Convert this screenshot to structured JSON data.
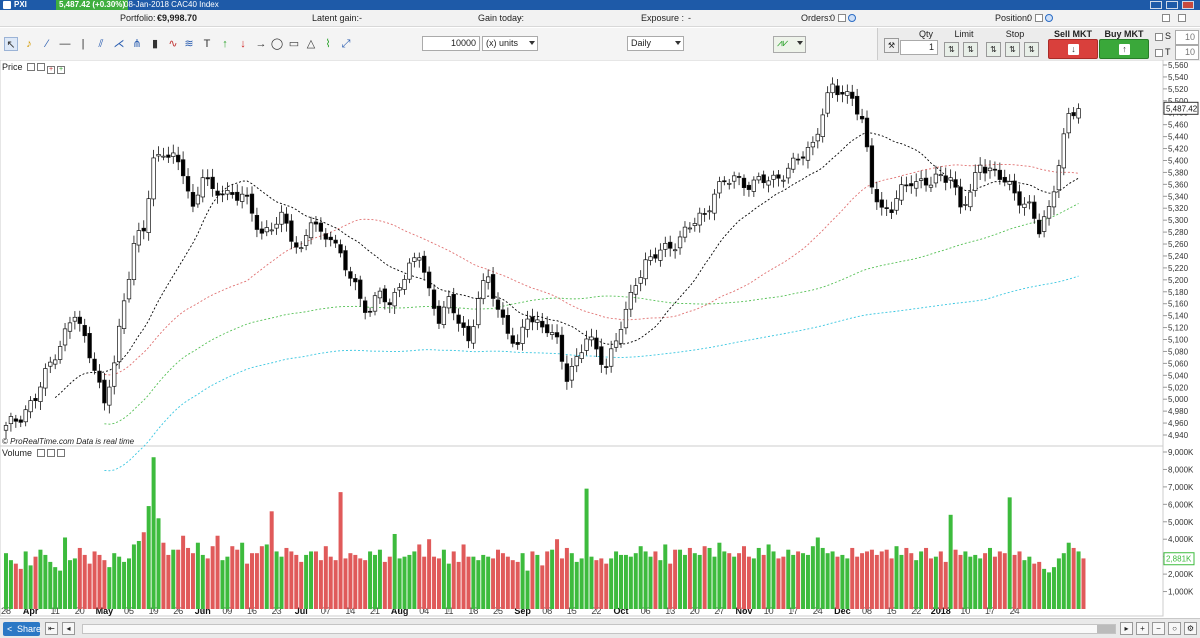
{
  "titlebar": {
    "symbol": "PXI",
    "price_change": "5,487.42 (+0.30%)",
    "description": "08-Jan-2018 CAC40 Index"
  },
  "infobar": {
    "portfolio_label": "Portfolio:",
    "portfolio_value": "€9,998.70",
    "latent_label": "Latent gain:",
    "latent_value": "-",
    "gain_label": "Gain today:",
    "gain_value": "-",
    "exposure_label": "Exposure :",
    "exposure_value": "-",
    "orders_label": "Orders:",
    "orders_value": "0",
    "position_label": "Position:",
    "position_value": "0"
  },
  "toolbar": {
    "quantity": "10000",
    "units": "(x) units",
    "timeframe": "Daily"
  },
  "orders": {
    "qty_label": "Qty",
    "qty_value": "1",
    "limit_label": "Limit",
    "stop_label": "Stop",
    "sell_label": "Sell MKT",
    "buy_label": "Buy MKT",
    "s_label": "S",
    "s_value": "10",
    "t_label": "T",
    "t_value": "10"
  },
  "panels": {
    "price_label": "Price",
    "volume_label": "Volume",
    "credit": "© ProRealTime.com  Data is real time"
  },
  "footer": {
    "share_label": "Share"
  },
  "colors": {
    "up": "#ffffff",
    "down": "#000000",
    "vol_up": "#3dbb3d",
    "vol_down": "#e05a5a",
    "ma20": "#000000",
    "ma50": "#e07070",
    "ma100": "#55c055",
    "ma200": "#38c6e0"
  },
  "chart_data": {
    "type": "candlestick",
    "price_axis": {
      "ticks": [
        "5,560",
        "5,540",
        "5,520",
        "5,500",
        "5,480",
        "5,460",
        "5,440",
        "5,420",
        "5,400",
        "5,380",
        "5,360",
        "5,340",
        "5,320",
        "5,300",
        "5,280",
        "5,260",
        "5,240",
        "5,220",
        "5,200",
        "5,180",
        "5,160",
        "5,140",
        "5,120",
        "5,100",
        "5,080",
        "5,060",
        "5,040",
        "5,020",
        "5,000",
        "4,980",
        "4,960",
        "4,940"
      ],
      "range": [
        4940,
        5560
      ],
      "current": "5,487.42"
    },
    "volume_axis": {
      "ticks": [
        "9,000K",
        "8,000K",
        "7,000K",
        "6,000K",
        "5,000K",
        "4,000K",
        "3,000K",
        "2,000K",
        "1,000K"
      ],
      "range": [
        0,
        9000
      ],
      "current": "2,881K"
    },
    "x_axis": {
      "labels": [
        "28",
        "Apr",
        "11",
        "20",
        "May",
        "05",
        "19",
        "26",
        "Jun",
        "09",
        "16",
        "23",
        "Jul",
        "07",
        "14",
        "21",
        "Aug",
        "04",
        "11",
        "18",
        "25",
        "Sep",
        "08",
        "15",
        "22",
        "Oct",
        "06",
        "13",
        "20",
        "27",
        "Nov",
        "10",
        "17",
        "24",
        "Dec",
        "08",
        "15",
        "22",
        "2018",
        "10",
        "17",
        "24"
      ]
    },
    "close_path": [
      [
        0,
        4950
      ],
      [
        6,
        5000
      ],
      [
        10,
        5080
      ],
      [
        14,
        5140
      ],
      [
        16,
        5100
      ],
      [
        18,
        5060
      ],
      [
        20,
        4985
      ],
      [
        22,
        5060
      ],
      [
        24,
        5170
      ],
      [
        26,
        5260
      ],
      [
        28,
        5280
      ],
      [
        30,
        5400
      ],
      [
        32,
        5420
      ],
      [
        34,
        5400
      ],
      [
        36,
        5380
      ],
      [
        38,
        5320
      ],
      [
        40,
        5380
      ],
      [
        42,
        5340
      ],
      [
        44,
        5350
      ],
      [
        48,
        5340
      ],
      [
        52,
        5280
      ],
      [
        56,
        5300
      ],
      [
        60,
        5250
      ],
      [
        62,
        5300
      ],
      [
        64,
        5270
      ],
      [
        66,
        5280
      ],
      [
        68,
        5240
      ],
      [
        70,
        5200
      ],
      [
        72,
        5170
      ],
      [
        74,
        5150
      ],
      [
        76,
        5180
      ],
      [
        78,
        5150
      ],
      [
        80,
        5200
      ],
      [
        84,
        5240
      ],
      [
        86,
        5180
      ],
      [
        88,
        5140
      ],
      [
        90,
        5160
      ],
      [
        92,
        5130
      ],
      [
        94,
        5100
      ],
      [
        96,
        5170
      ],
      [
        98,
        5200
      ],
      [
        100,
        5150
      ],
      [
        102,
        5120
      ],
      [
        104,
        5080
      ],
      [
        106,
        5140
      ],
      [
        110,
        5120
      ],
      [
        112,
        5090
      ],
      [
        114,
        5040
      ],
      [
        116,
        5070
      ],
      [
        118,
        5100
      ],
      [
        120,
        5080
      ],
      [
        122,
        5060
      ],
      [
        124,
        5100
      ],
      [
        126,
        5140
      ],
      [
        128,
        5200
      ],
      [
        130,
        5230
      ],
      [
        134,
        5250
      ],
      [
        138,
        5280
      ],
      [
        142,
        5310
      ],
      [
        144,
        5350
      ],
      [
        148,
        5370
      ],
      [
        152,
        5360
      ],
      [
        156,
        5370
      ],
      [
        160,
        5390
      ],
      [
        164,
        5430
      ],
      [
        166,
        5480
      ],
      [
        168,
        5520
      ],
      [
        172,
        5510
      ],
      [
        174,
        5460
      ],
      [
        176,
        5360
      ],
      [
        178,
        5320
      ],
      [
        180,
        5320
      ],
      [
        184,
        5370
      ],
      [
        188,
        5360
      ],
      [
        192,
        5380
      ],
      [
        194,
        5320
      ],
      [
        196,
        5340
      ],
      [
        198,
        5400
      ],
      [
        202,
        5370
      ],
      [
        206,
        5340
      ],
      [
        208,
        5320
      ],
      [
        210,
        5280
      ],
      [
        212,
        5320
      ],
      [
        214,
        5400
      ],
      [
        216,
        5470
      ],
      [
        218,
        5487
      ]
    ],
    "volume_values": [
      3200,
      2800,
      2600,
      2300,
      3300,
      2500,
      3000,
      3400,
      3100,
      2700,
      2400,
      2200,
      4100,
      2800,
      2900,
      3500,
      3100,
      2600,
      3300,
      3100,
      2800,
      2400,
      3200,
      3000,
      2700,
      2900,
      3700,
      3900,
      4400,
      5900,
      8700,
      5200,
      3800,
      3100,
      3400,
      3400,
      4200,
      3500,
      3200,
      3800,
      3100,
      2900,
      3600,
      4200,
      2800,
      3000,
      3600,
      3400,
      3800,
      2600,
      3200,
      3200,
      3600,
      3700,
      5600,
      3300,
      3000,
      3500,
      3300,
      3100,
      2700,
      3100,
      3300,
      3300,
      2800,
      3600,
      3000,
      2800,
      6700,
      2900,
      3200,
      3100,
      2900,
      2800,
      3300,
      3100,
      3400,
      2700,
      3000,
      4300,
      2900,
      3000,
      3100,
      3300,
      3700,
      3000,
      4000,
      3000,
      2900,
      3400,
      2600,
      3300,
      2700,
      3700,
      3000,
      3000,
      2800,
      3100,
      3000,
      2900,
      3400,
      3200,
      3000,
      2800,
      2700,
      3200,
      2200,
      3300,
      3100,
      2500,
      3300,
      3400,
      4000,
      2900,
      3500,
      3200,
      2700,
      2900,
      6900,
      3000,
      2800,
      2900,
      2600,
      2900,
      3300,
      3100,
      3100,
      3000,
      3200,
      3600,
      3300,
      3000,
      3300,
      2800,
      3700,
      2600,
      3400,
      3400,
      3100,
      3500,
      3200,
      3100,
      3600,
      3500,
      3000,
      3800,
      3300,
      3200,
      3000,
      3200,
      3600,
      3000,
      2900,
      3500,
      3100,
      3700,
      3300,
      2900,
      3000,
      3400,
      3100,
      3300,
      3200,
      3100,
      3600,
      4100,
      3500,
      3200,
      3300,
      3000,
      3100,
      2900,
      3500,
      3000,
      3200,
      3300,
      3400,
      3100,
      3300,
      3400,
      2900,
      3600,
      3100,
      3500,
      3200,
      2800,
      3300,
      3500,
      2900,
      3000,
      3300,
      2700,
      5400,
      3400,
      3100,
      3300,
      3000,
      3100,
      2900,
      3200,
      3500,
      3000,
      3300,
      3200,
      6400,
      3100,
      3300,
      2800,
      3000,
      2600,
      2700,
      2300,
      2100,
      2400,
      2900,
      3200,
      3800,
      3500,
      3300,
      2900
    ]
  }
}
